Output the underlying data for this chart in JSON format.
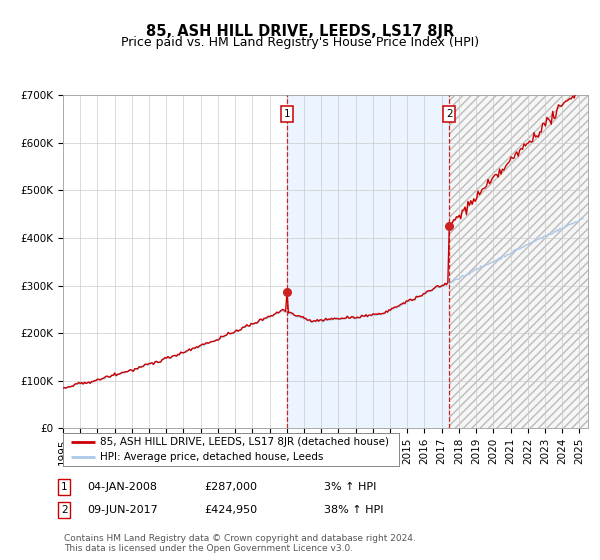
{
  "title": "85, ASH HILL DRIVE, LEEDS, LS17 8JR",
  "subtitle": "Price paid vs. HM Land Registry's House Price Index (HPI)",
  "ylim": [
    0,
    700000
  ],
  "yticks": [
    0,
    100000,
    200000,
    300000,
    400000,
    500000,
    600000,
    700000
  ],
  "ytick_labels": [
    "£0",
    "£100K",
    "£200K",
    "£300K",
    "£400K",
    "£500K",
    "£600K",
    "£700K"
  ],
  "xlim_start": 1995.0,
  "xlim_end": 2025.5,
  "background_color": "#ffffff",
  "plot_bg_color": "#ffffff",
  "grid_color": "#cccccc",
  "hpi_line_color": "#aac8e8",
  "price_line_color": "#cc0000",
  "shade_color": "#ddeeff",
  "sale1_x": 2008.01,
  "sale1_y": 287000,
  "sale2_x": 2017.44,
  "sale2_y": 424950,
  "legend_label1": "85, ASH HILL DRIVE, LEEDS, LS17 8JR (detached house)",
  "legend_label2": "HPI: Average price, detached house, Leeds",
  "note1_date": "04-JAN-2008",
  "note1_price": "£287,000",
  "note1_hpi": "3% ↑ HPI",
  "note2_date": "09-JUN-2017",
  "note2_price": "£424,950",
  "note2_hpi": "38% ↑ HPI",
  "footer": "Contains HM Land Registry data © Crown copyright and database right 2024.\nThis data is licensed under the Open Government Licence v3.0.",
  "title_fontsize": 10.5,
  "subtitle_fontsize": 9,
  "axis_fontsize": 7.5,
  "legend_fontsize": 7.5,
  "note_fontsize": 8,
  "footer_fontsize": 6.5
}
